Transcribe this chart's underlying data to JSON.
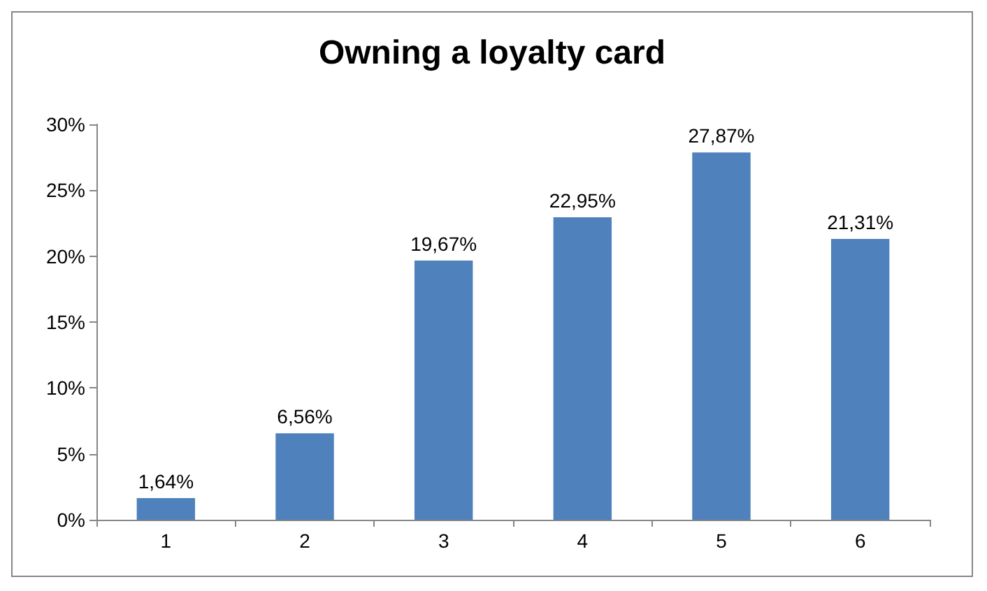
{
  "chart_data": {
    "type": "bar",
    "title": "Owning a loyalty card",
    "categories": [
      "1",
      "2",
      "3",
      "4",
      "5",
      "6"
    ],
    "values": [
      1.64,
      6.56,
      19.67,
      22.95,
      27.87,
      21.31
    ],
    "value_labels": [
      "1,64%",
      "6,56%",
      "19,67%",
      "22,95%",
      "27,87%",
      "21,31%"
    ],
    "color": "#4f81bd",
    "ylim": [
      0,
      30
    ],
    "yticks": [
      {
        "value": 0,
        "label": "0%"
      },
      {
        "value": 5,
        "label": "5%"
      },
      {
        "value": 10,
        "label": "10%"
      },
      {
        "value": 15,
        "label": "15%"
      },
      {
        "value": 20,
        "label": "20%"
      },
      {
        "value": 25,
        "label": "25%"
      },
      {
        "value": 30,
        "label": "30%"
      }
    ],
    "grid": false
  }
}
